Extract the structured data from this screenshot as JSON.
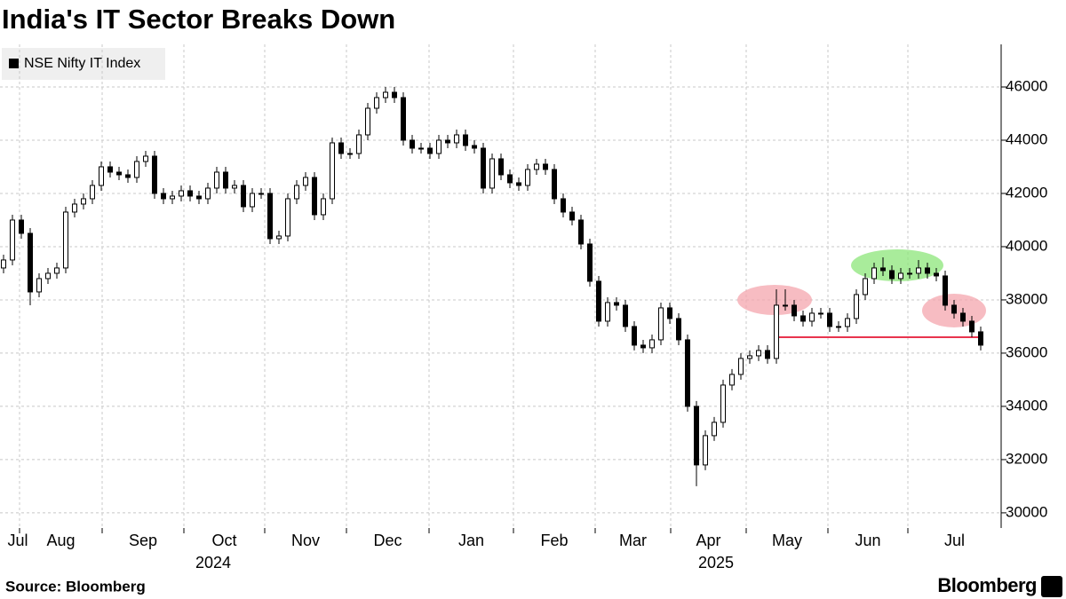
{
  "chart_data": {
    "type": "candlestick",
    "title": "India's IT Sector Breaks Down",
    "source": "Source: Bloomberg",
    "brand": "Bloomberg",
    "series": [
      {
        "name": "NSE Nifty IT Index",
        "color": "#000000",
        "open": [
          39200,
          39500,
          41000,
          40500,
          38300,
          38800,
          39000,
          39200,
          41300,
          41600,
          41800,
          42300,
          43000,
          42800,
          42700,
          42600,
          43200,
          43400,
          42000,
          41800,
          41900,
          42100,
          41900,
          41800,
          42200,
          42800,
          42200,
          42300,
          41500,
          42000,
          42000,
          40300,
          40400,
          41800,
          42300,
          42600,
          41200,
          41800,
          43900,
          43500,
          43500,
          44200,
          45200,
          45600,
          45800,
          45600,
          44000,
          43700,
          43700,
          43500,
          44000,
          43900,
          44200,
          43800,
          43700,
          42200,
          43300,
          42700,
          42400,
          42300,
          42900,
          43100,
          42900,
          41800,
          41300,
          41000,
          40100,
          38700,
          37200,
          37900,
          37800,
          37000,
          36300,
          36200,
          36500,
          37700,
          37300,
          36500,
          34000,
          31800,
          32900,
          33400,
          34800,
          35200,
          35800,
          35900,
          36100,
          35800,
          37800,
          37800,
          37400,
          37200,
          37500,
          37500,
          37000,
          37000,
          37300,
          38200,
          38800,
          39200,
          39100,
          38800,
          39000,
          39000,
          39200,
          39000,
          38900,
          37800,
          37500,
          37200,
          36800
        ],
        "high": [
          39700,
          41200,
          41200,
          40700,
          39000,
          39200,
          39400,
          41500,
          41800,
          42000,
          42500,
          43200,
          43200,
          43000,
          42900,
          43400,
          43600,
          43600,
          42200,
          42100,
          42300,
          42300,
          42100,
          42400,
          43000,
          43000,
          42500,
          42500,
          42200,
          42200,
          42200,
          40600,
          42000,
          42500,
          42800,
          42800,
          42000,
          44100,
          44100,
          43700,
          44400,
          45400,
          45800,
          46000,
          46000,
          45800,
          44200,
          43900,
          43900,
          44200,
          44200,
          44400,
          44400,
          44000,
          43900,
          43500,
          43500,
          42900,
          42600,
          43100,
          43300,
          43300,
          43100,
          42000,
          41500,
          41200,
          40300,
          38900,
          38100,
          38100,
          38000,
          37200,
          36500,
          36700,
          37900,
          37900,
          37500,
          36700,
          34200,
          33100,
          33600,
          35000,
          35400,
          36000,
          36100,
          36300,
          36300,
          38400,
          38400,
          38000,
          37600,
          37700,
          37700,
          37700,
          37200,
          37500,
          38400,
          39000,
          39400,
          39600,
          39300,
          39200,
          39200,
          39500,
          39400,
          39200,
          39100,
          38000,
          37700,
          37400,
          37000
        ],
        "low": [
          39000,
          39300,
          40300,
          37800,
          38100,
          38600,
          38800,
          39000,
          41100,
          41400,
          41600,
          42100,
          42600,
          42500,
          42400,
          42400,
          43000,
          41800,
          41600,
          41600,
          41700,
          41700,
          41600,
          41600,
          42000,
          42000,
          42000,
          41300,
          41300,
          41800,
          40100,
          40100,
          40200,
          41600,
          42100,
          41000,
          41000,
          41600,
          43300,
          43300,
          43300,
          44000,
          45000,
          45400,
          45400,
          43800,
          43500,
          43500,
          43300,
          43300,
          43700,
          43700,
          43600,
          43500,
          42000,
          42000,
          42500,
          42200,
          42100,
          42100,
          42700,
          42700,
          41600,
          41100,
          40800,
          39900,
          38500,
          37000,
          37000,
          37600,
          36800,
          36100,
          36000,
          36000,
          36300,
          37100,
          36300,
          33800,
          31000,
          31600,
          32700,
          33200,
          34600,
          35000,
          35600,
          35700,
          35600,
          35600,
          37600,
          37200,
          37000,
          37000,
          37300,
          36800,
          36800,
          36800,
          37100,
          38000,
          38600,
          38900,
          38600,
          38600,
          38800,
          38800,
          38800,
          38700,
          37600,
          37300,
          37000,
          36600,
          36100
        ],
        "close": [
          39500,
          41000,
          40500,
          38300,
          38800,
          39000,
          39200,
          41300,
          41600,
          41800,
          42300,
          43000,
          42800,
          42700,
          42600,
          43200,
          43400,
          42000,
          41800,
          41900,
          42100,
          41900,
          41800,
          42200,
          42800,
          42200,
          42300,
          41500,
          42000,
          42000,
          40300,
          40400,
          41800,
          42300,
          42600,
          41200,
          41800,
          43900,
          43500,
          43500,
          44200,
          45200,
          45600,
          45800,
          45600,
          44000,
          43700,
          43700,
          43500,
          44000,
          43900,
          44200,
          43800,
          43700,
          42200,
          43300,
          42700,
          42400,
          42300,
          42900,
          43100,
          42900,
          41800,
          41300,
          41000,
          40100,
          38700,
          37200,
          37900,
          37800,
          37000,
          36300,
          36200,
          36500,
          37700,
          37300,
          36500,
          34000,
          31800,
          32900,
          33400,
          34800,
          35200,
          35800,
          35900,
          36100,
          35800,
          37800,
          37800,
          37400,
          37200,
          37500,
          37500,
          37000,
          37000,
          37300,
          38200,
          38800,
          39200,
          39100,
          38800,
          39000,
          39000,
          39200,
          39000,
          38900,
          37800,
          37500,
          37200,
          36800,
          36300
        ]
      }
    ],
    "support_line": {
      "value": 36600,
      "color": "#e8344e"
    },
    "xlim": [
      -0.4,
      112.3
    ],
    "xticks": [
      {
        "value": -0.4,
        "label": "Jul"
      },
      {
        "value": 1.8,
        "label": "Aug"
      },
      {
        "value": 11.1,
        "label": "Sep"
      },
      {
        "value": 20.3,
        "label": "Oct"
      },
      {
        "value": 29.4,
        "label": "Nov"
      },
      {
        "value": 38.6,
        "label": "Dec"
      },
      {
        "value": 47.9,
        "label": "Jan"
      },
      {
        "value": 57.4,
        "label": "Feb"
      },
      {
        "value": 66.6,
        "label": "Mar"
      },
      {
        "value": 75.1,
        "label": "Apr"
      },
      {
        "value": 83.6,
        "label": "May"
      },
      {
        "value": 92.8,
        "label": "Jun"
      },
      {
        "value": 101.8,
        "label": "Jul"
      }
    ],
    "year_labels": [
      {
        "value": 23.6,
        "label": "2024"
      },
      {
        "value": 80.2,
        "label": "2025"
      }
    ],
    "ylim": [
      29430,
      47600
    ],
    "yticks": [
      30000,
      32000,
      34000,
      36000,
      38000,
      40000,
      42000,
      44000,
      46000
    ],
    "grid": true
  }
}
